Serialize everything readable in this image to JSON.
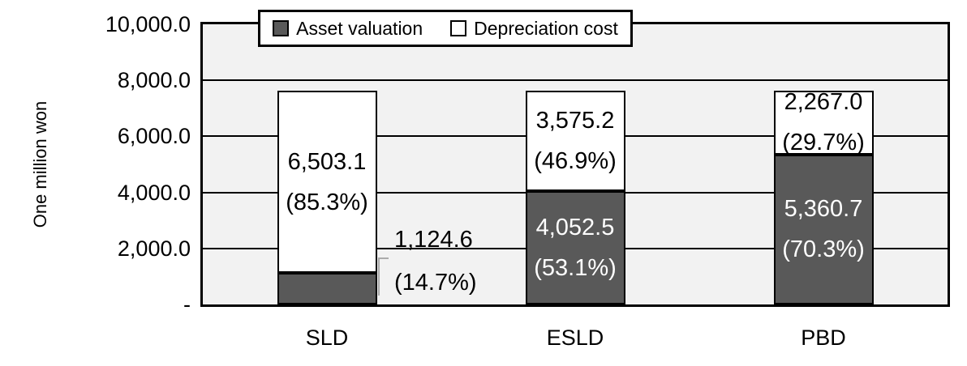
{
  "chart_data": {
    "type": "bar",
    "stacked": true,
    "title": "",
    "ylabel": "One million won",
    "xlabel": "",
    "ylim": [
      0,
      10000
    ],
    "ytick_interval": 2000,
    "grid": true,
    "legend_position": "top",
    "plot_background": "#f2f2f2",
    "gridline_color": "#000000",
    "leader_color": "#ababab",
    "yticks": [
      {
        "value": 0,
        "label": "-"
      },
      {
        "value": 2000,
        "label": "2,000.0"
      },
      {
        "value": 4000,
        "label": "4,000.0"
      },
      {
        "value": 6000,
        "label": "6,000.0"
      },
      {
        "value": 8000,
        "label": "8,000.0"
      },
      {
        "value": 10000,
        "label": "10,000.0"
      }
    ],
    "categories": [
      "SLD",
      "ESLD",
      "PBD"
    ],
    "series": [
      {
        "name": "Asset valuation",
        "color": "#595959",
        "text_color": "#ffffff",
        "values": [
          1124.6,
          4052.5,
          5360.7
        ],
        "labels": [
          {
            "value": "1,124.6",
            "percent": "(14.7%)",
            "placement": "outside-right"
          },
          {
            "value": "4,052.5",
            "percent": "(53.1%)",
            "placement": "inside"
          },
          {
            "value": "5,360.7",
            "percent": "(70.3%)",
            "placement": "inside"
          }
        ]
      },
      {
        "name": "Depreciation cost",
        "color": "#ffffff",
        "text_color": "#000000",
        "values": [
          6503.1,
          3575.2,
          2267.0
        ],
        "labels": [
          {
            "value": "6,503.1",
            "percent": "(85.3%)",
            "placement": "inside"
          },
          {
            "value": "3,575.2",
            "percent": "(46.9%)",
            "placement": "inside"
          },
          {
            "value": "2,267.0",
            "percent": "(29.7%)",
            "placement": "inside"
          }
        ]
      }
    ]
  }
}
